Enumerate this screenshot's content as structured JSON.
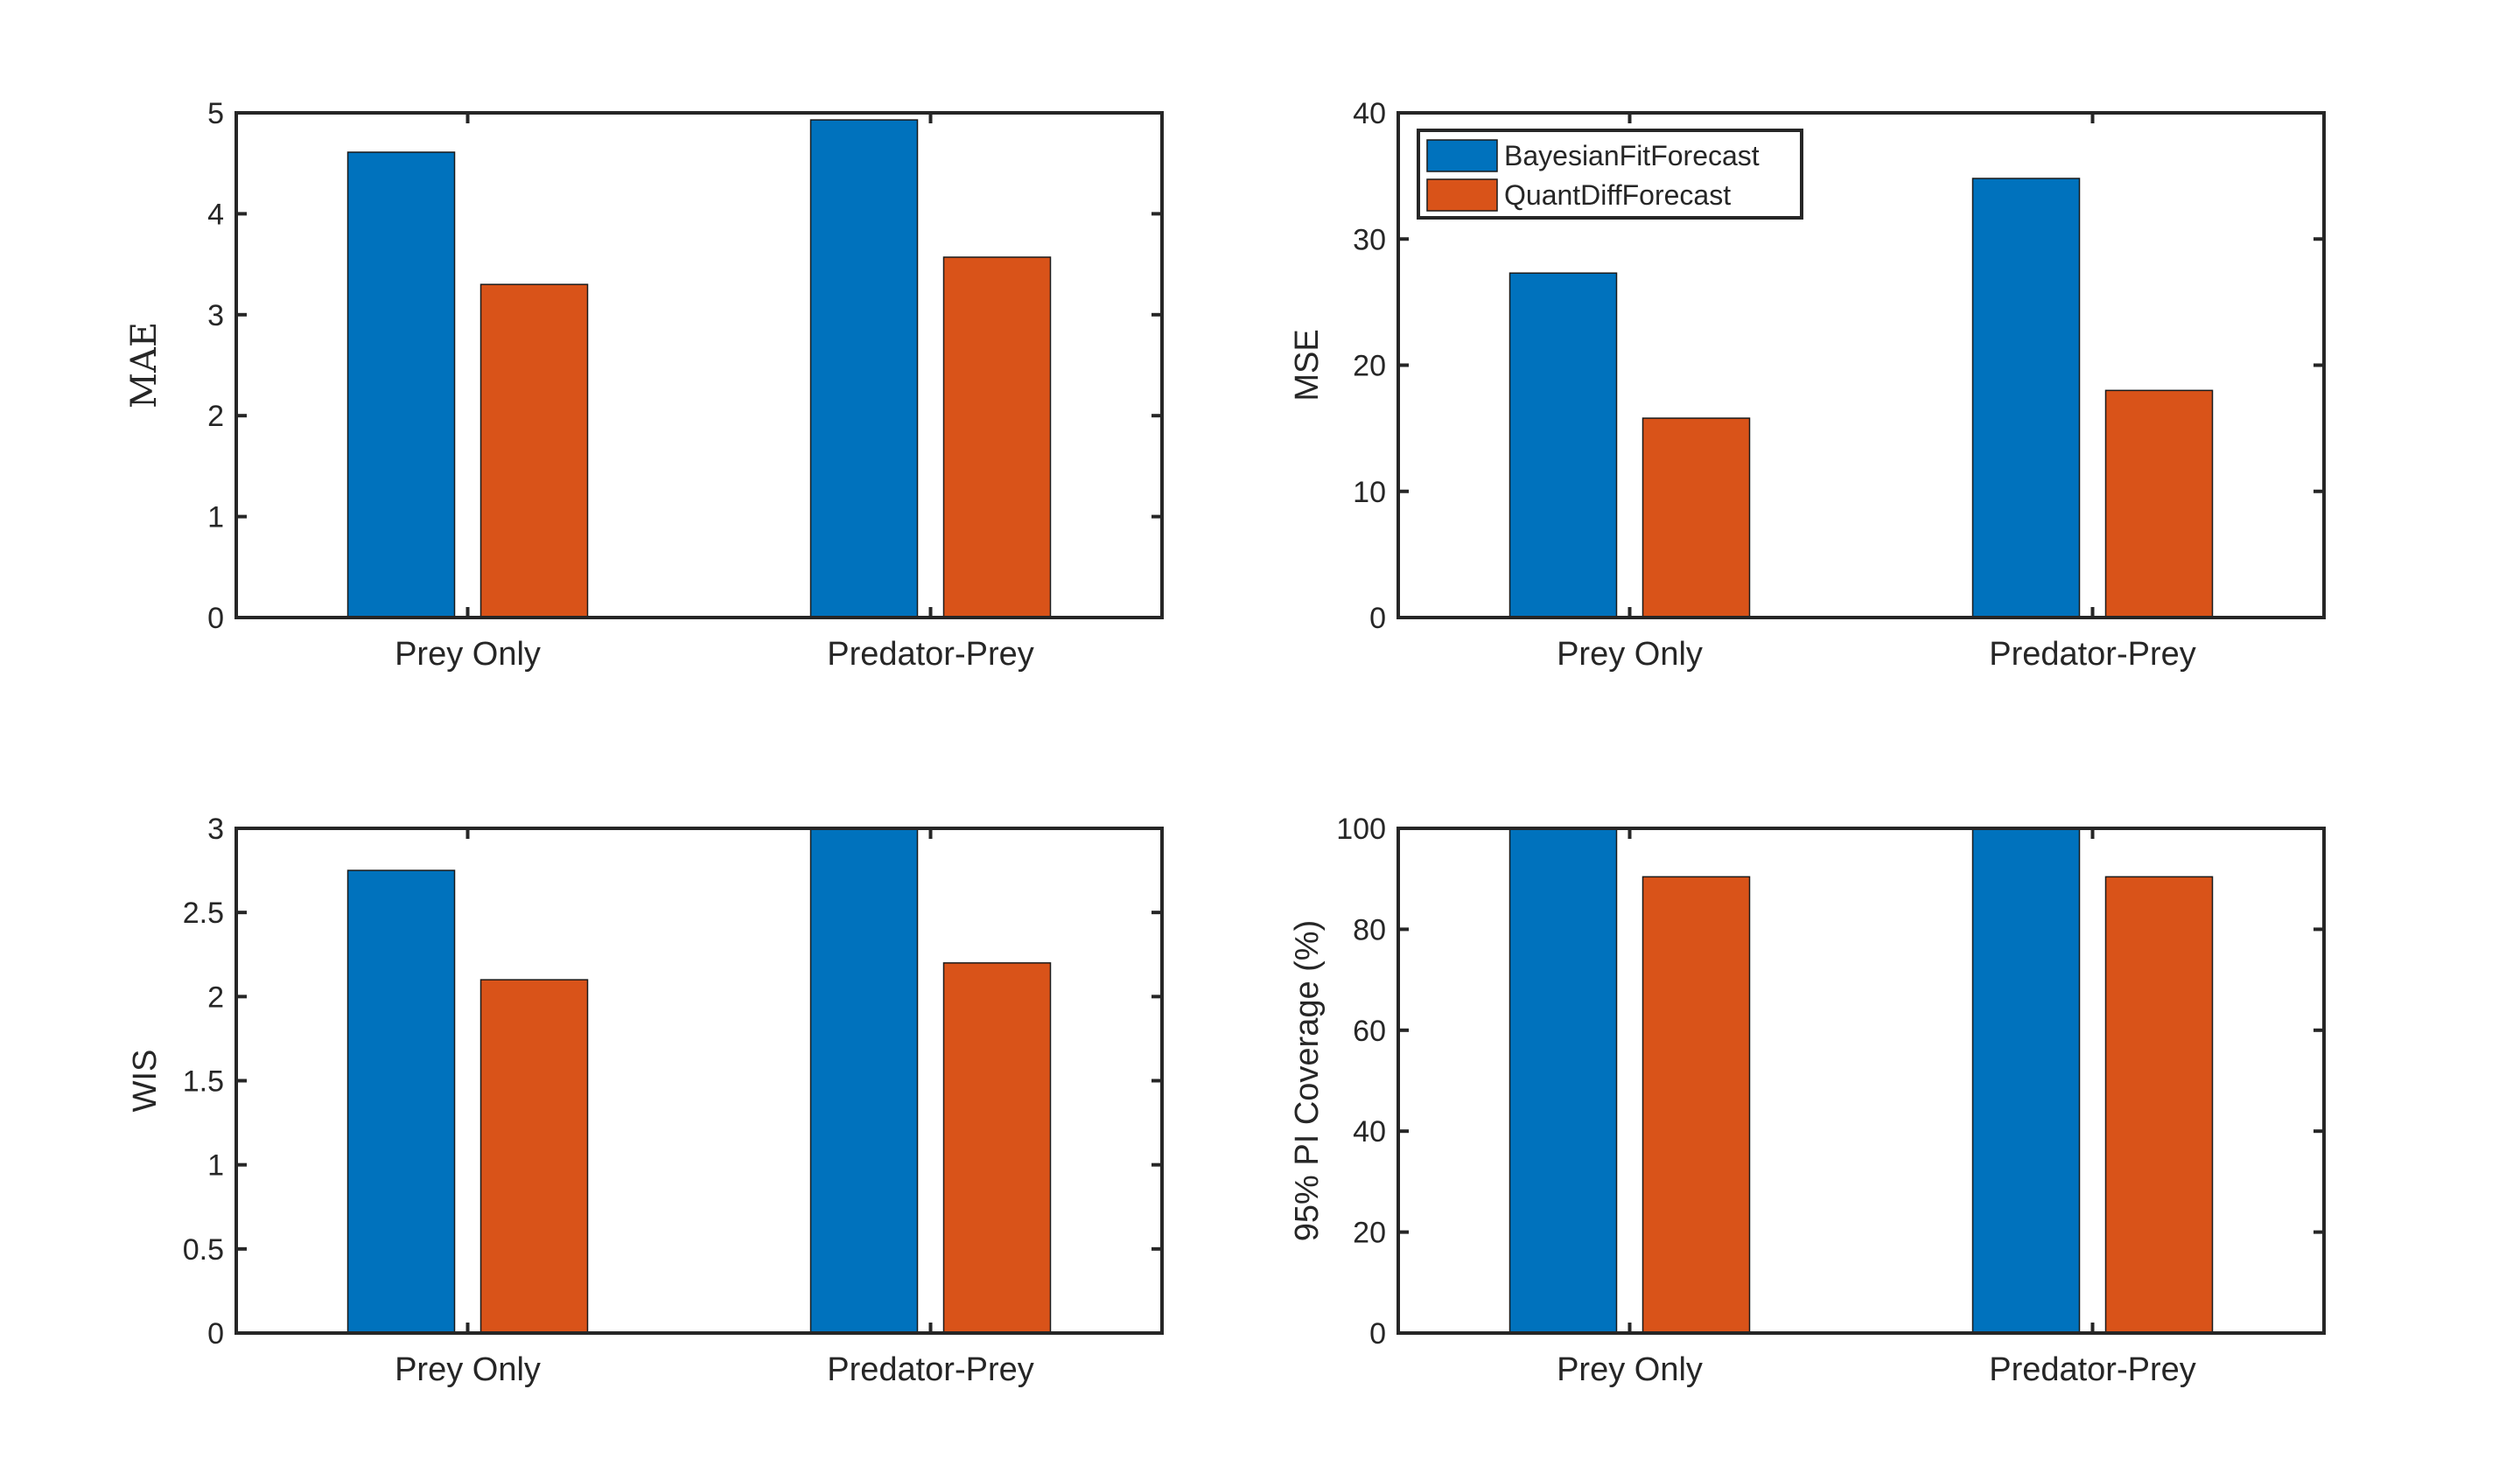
{
  "figure": {
    "background": "#ffffff",
    "axis_color": "#262626"
  },
  "legend": {
    "placement": "top-left of MSE panel",
    "entries": [
      "BayesianFitForecast",
      "QuantDiffForecast"
    ]
  },
  "chart_data": [
    {
      "type": "bar",
      "categories": [
        "Prey Only",
        "Predator-Prey"
      ],
      "series": [
        {
          "name": "BayesianFitForecast",
          "values": [
            4.61,
            4.93
          ],
          "color": "#0072BD"
        },
        {
          "name": "QuantDiffForecast",
          "values": [
            3.3,
            3.57
          ],
          "color": "#D95319"
        }
      ],
      "title": "",
      "xlabel": "",
      "ylabel": "MAE",
      "ylim": [
        0,
        5
      ],
      "yticks": [
        "0",
        "1",
        "2",
        "3",
        "4",
        "5"
      ],
      "grid": false,
      "legend": false
    },
    {
      "type": "bar",
      "categories": [
        "Prey Only",
        "Predator-Prey"
      ],
      "series": [
        {
          "name": "BayesianFitForecast",
          "values": [
            27.3,
            34.8
          ],
          "color": "#0072BD"
        },
        {
          "name": "QuantDiffForecast",
          "values": [
            15.8,
            18.0
          ],
          "color": "#D95319"
        }
      ],
      "title": "",
      "xlabel": "",
      "ylabel": "MSE",
      "ylim": [
        0,
        40
      ],
      "yticks": [
        "0",
        "10",
        "20",
        "30",
        "40"
      ],
      "grid": false,
      "legend": true
    },
    {
      "type": "bar",
      "categories": [
        "Prey Only",
        "Predator-Prey"
      ],
      "series": [
        {
          "name": "BayesianFitForecast",
          "values": [
            2.75,
            3.0
          ],
          "color": "#0072BD"
        },
        {
          "name": "QuantDiffForecast",
          "values": [
            2.1,
            2.2
          ],
          "color": "#D95319"
        }
      ],
      "title": "",
      "xlabel": "",
      "ylabel": "WIS",
      "ylim": [
        0,
        3
      ],
      "yticks": [
        "0",
        "0.5",
        "1",
        "1.5",
        "2",
        "2.5",
        "3"
      ],
      "grid": false,
      "legend": false
    },
    {
      "type": "bar",
      "categories": [
        "Prey Only",
        "Predator-Prey"
      ],
      "series": [
        {
          "name": "BayesianFitForecast",
          "values": [
            100,
            100
          ],
          "color": "#0072BD"
        },
        {
          "name": "QuantDiffForecast",
          "values": [
            90.4,
            90.4
          ],
          "color": "#D95319"
        }
      ],
      "title": "",
      "xlabel": "",
      "ylabel": "95% PI Coverage (%)",
      "ylim": [
        0,
        100
      ],
      "yticks": [
        "0",
        "20",
        "40",
        "60",
        "80",
        "100"
      ],
      "grid": false,
      "legend": false
    }
  ]
}
